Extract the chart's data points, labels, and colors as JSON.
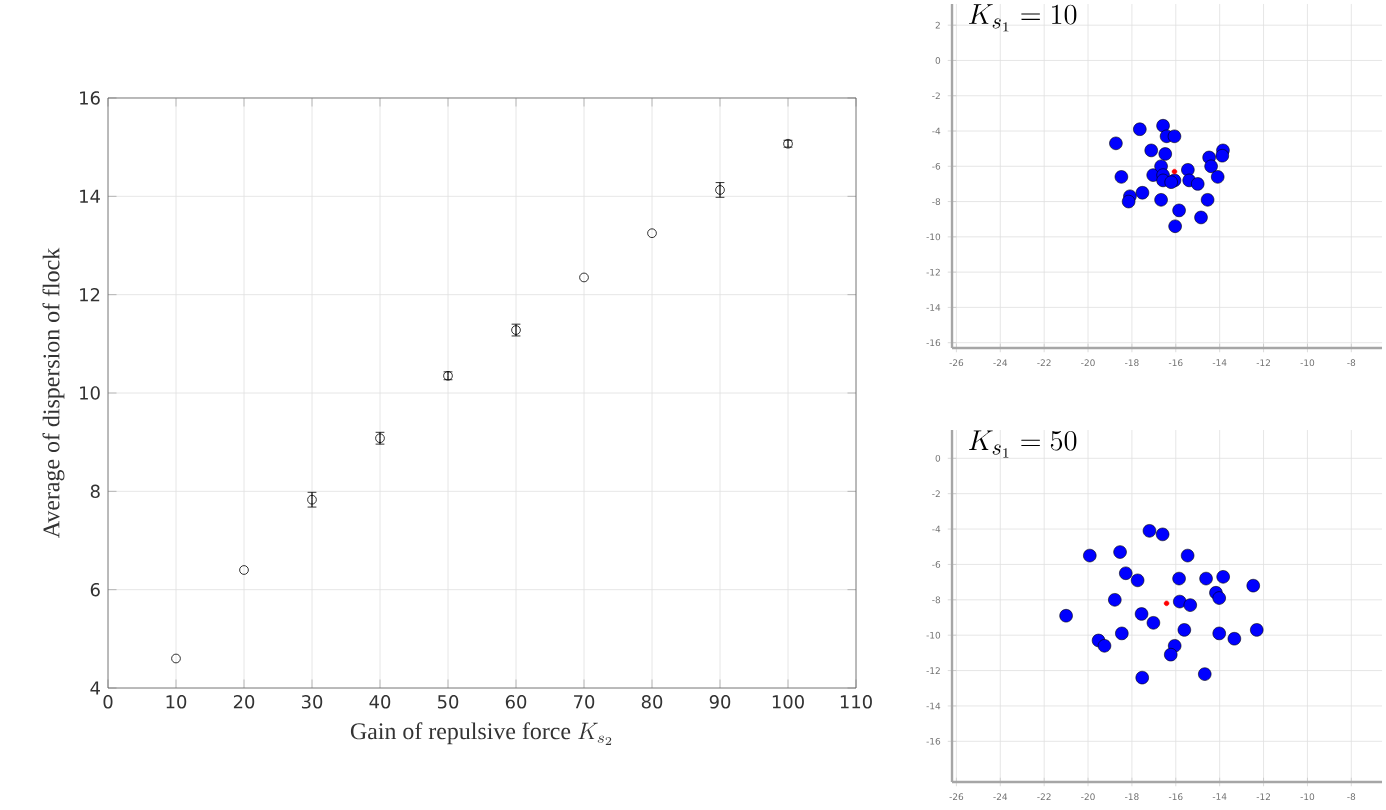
{
  "chart_data": [
    {
      "type": "scatter",
      "xlabel": "\\textrm{Gain of repulsive force } K_{s_2}",
      "ylabel": "Average of dispersion of flock",
      "x": [
        10,
        20,
        30,
        40,
        50,
        60,
        70,
        80,
        90,
        100
      ],
      "values": [
        4.6,
        6.4,
        7.83,
        9.08,
        10.35,
        11.28,
        12.35,
        13.25,
        14.13,
        15.07
      ],
      "errors": [
        null,
        null,
        0.15,
        0.12,
        0.08,
        0.12,
        null,
        null,
        0.15,
        0.07
      ],
      "color": "#000000",
      "marker": "circle",
      "grid": true,
      "xlim": [
        0,
        110
      ],
      "xticks": [
        0,
        10,
        20,
        30,
        40,
        50,
        60,
        70,
        80,
        90,
        100,
        110
      ],
      "ylim": [
        4,
        16
      ],
      "yticks": [
        4,
        6,
        8,
        10,
        12,
        14,
        16
      ]
    },
    {
      "type": "scatter",
      "title": "K_{s_1} = 10",
      "marker": "circle",
      "grid": true,
      "xlim": [
        -26.2,
        -6.6
      ],
      "xticks": [
        -26,
        -24,
        -22,
        -20,
        -18,
        -16,
        -14,
        -12,
        -10,
        -8
      ],
      "ylim": [
        -16.3,
        3.2
      ],
      "yticks": [
        -16,
        -14,
        -12,
        -10,
        -8,
        -6,
        -4,
        -2,
        0,
        2
      ],
      "series": [
        {
          "color": "#0000ff",
          "x": [
            -18.73,
            -17.64,
            -16.58,
            -16.42,
            -16.06,
            -17.12,
            -16.48,
            -18.48,
            -18.09,
            -18.15,
            -17.52,
            -16.67,
            -17.03,
            -16.67,
            -16.58,
            -16.58,
            -16.06,
            -15.45,
            -15.39,
            -15.0,
            -15.85,
            -16.03,
            -14.85,
            -14.55,
            -14.48,
            -14.39,
            -13.85,
            -13.88,
            -14.09,
            -16.21
          ],
          "values": [
            -4.7,
            -3.9,
            -3.7,
            -4.3,
            -4.3,
            -5.1,
            -5.3,
            -6.6,
            -7.7,
            -8.0,
            -7.5,
            -7.9,
            -6.5,
            -6.0,
            -6.5,
            -6.8,
            -6.8,
            -6.2,
            -6.8,
            -7.0,
            -8.5,
            -9.4,
            -8.9,
            -7.9,
            -5.5,
            -6.0,
            -5.1,
            -5.4,
            -6.6,
            -6.9
          ]
        },
        {
          "color": "#ff0000",
          "x": [
            -16.06
          ],
          "values": [
            -6.3
          ]
        }
      ]
    },
    {
      "type": "scatter",
      "title": "K_{s_1} = 50",
      "marker": "circle",
      "grid": true,
      "xlim": [
        -26.2,
        -6.6
      ],
      "xticks": [
        -26,
        -24,
        -22,
        -20,
        -18,
        -16,
        -14,
        -12,
        -10,
        -8
      ],
      "ylim": [
        -18.3,
        1.6
      ],
      "yticks": [
        -16,
        -14,
        -12,
        -10,
        -8,
        -6,
        -4,
        -2,
        0
      ],
      "series": [
        {
          "color": "#0000ff",
          "x": [
            -17.2,
            -16.6,
            -19.92,
            -18.54,
            -15.46,
            -18.28,
            -17.74,
            -15.85,
            -14.62,
            -13.84,
            -12.47,
            -14.17,
            -14.02,
            -18.78,
            -15.82,
            -15.34,
            -21.0,
            -17.56,
            -17.02,
            -15.61,
            -18.46,
            -14.02,
            -13.33,
            -12.31,
            -19.52,
            -19.25,
            -16.05,
            -16.23,
            -17.53,
            -14.68
          ],
          "values": [
            -4.1,
            -4.3,
            -5.5,
            -5.3,
            -5.5,
            -6.5,
            -6.9,
            -6.8,
            -6.8,
            -6.7,
            -7.2,
            -7.6,
            -7.9,
            -8.0,
            -8.1,
            -8.3,
            -8.9,
            -8.8,
            -9.3,
            -9.7,
            -9.9,
            -9.9,
            -10.2,
            -9.7,
            -10.3,
            -10.6,
            -10.6,
            -11.1,
            -12.4,
            -12.2
          ]
        },
        {
          "color": "#ff0000",
          "x": [
            -16.42
          ],
          "values": [
            -8.2
          ]
        }
      ]
    }
  ]
}
